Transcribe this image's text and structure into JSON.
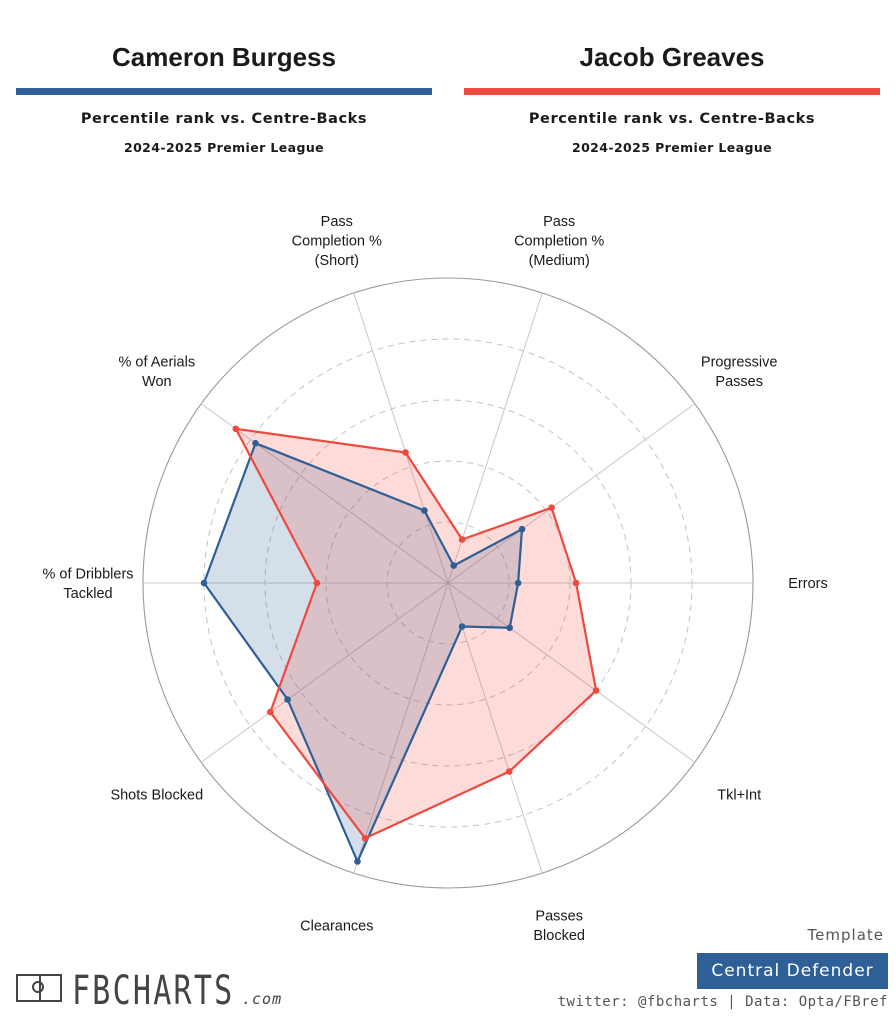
{
  "players": {
    "left": {
      "name": "Cameron Burgess",
      "subtitle": "Percentile rank vs. Centre-Backs",
      "season": "2024-2025 Premier League",
      "color": "#2f5f97"
    },
    "right": {
      "name": "Jacob Greaves",
      "subtitle": "Percentile rank vs. Centre-Backs",
      "season": "2024-2025 Premier League",
      "color": "#ee4a3f"
    }
  },
  "chart_data": {
    "type": "radar",
    "axes": [
      "Pass Completion % (Medium)",
      "Progressive Passes",
      "Errors",
      "Tkl+Int",
      "Passes Blocked",
      "Clearances",
      "Shots Blocked",
      "% of Dribblers Tackled",
      "% of Aerials Won",
      "Pass Completion % (Short)"
    ],
    "axis_label_lines": [
      [
        "Pass",
        "Completion %",
        "(Medium)"
      ],
      [
        "Progressive",
        "Passes"
      ],
      [
        "Errors"
      ],
      [
        "Tkl+Int"
      ],
      [
        "Passes",
        "Blocked"
      ],
      [
        "Clearances"
      ],
      [
        "Shots Blocked"
      ],
      [
        "% of Dribblers",
        "Tackled"
      ],
      [
        "% of Aerials",
        "Won"
      ],
      [
        "Pass",
        "Completion %",
        "(Short)"
      ]
    ],
    "range": [
      0,
      100
    ],
    "gridlines": [
      20,
      40,
      60,
      80
    ],
    "series": [
      {
        "name": "Cameron Burgess",
        "color": "#2f5f97",
        "values": [
          6,
          30,
          23,
          25,
          15,
          96,
          65,
          80,
          78,
          25
        ]
      },
      {
        "name": "Jacob Greaves",
        "color": "#ee4a3f",
        "values": [
          15,
          42,
          42,
          60,
          65,
          88,
          72,
          43,
          86,
          45
        ]
      }
    ]
  },
  "footer": {
    "template_label": "Template",
    "template_value": "Central Defender",
    "credits": "twitter: @fbcharts | Data: Opta/FBref",
    "logo_text": "FBCHARTS",
    "logo_suffix": ".com"
  }
}
